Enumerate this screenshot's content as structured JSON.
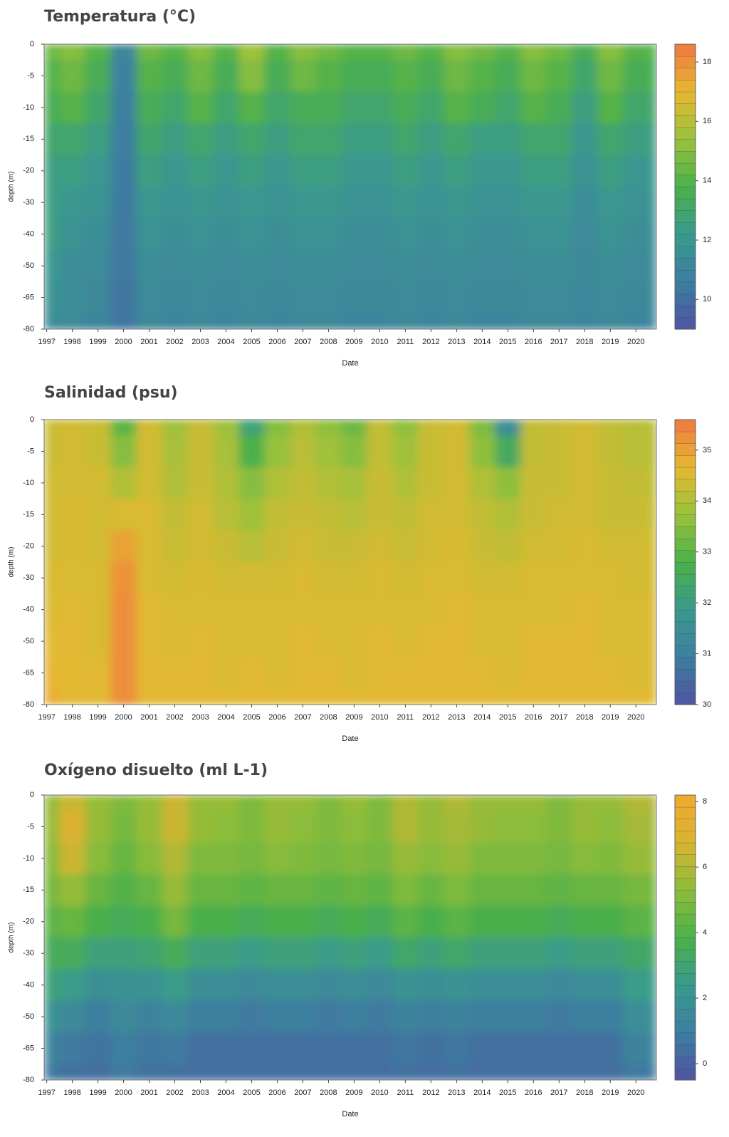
{
  "chart_data": [
    {
      "type": "contour",
      "title": "Temperatura (°C)",
      "xlabel": "Date",
      "ylabel": "depth (m)",
      "xlim": [
        1996.9,
        2020.8
      ],
      "xticks": [
        1997,
        1998,
        1999,
        2000,
        2001,
        2002,
        2003,
        2004,
        2005,
        2006,
        2007,
        2008,
        2009,
        2010,
        2011,
        2012,
        2013,
        2014,
        2015,
        2016,
        2017,
        2018,
        2019,
        2020
      ],
      "yticks": [
        0,
        -5,
        -10,
        -15,
        -20,
        -30,
        -40,
        -50,
        -65,
        -80
      ],
      "zlim": [
        9,
        18.6
      ],
      "zticks": [
        10,
        12,
        14,
        16,
        18
      ],
      "colors": [
        "#4f54a0",
        "#3d7ea0",
        "#3a9a8e",
        "#4bb04a",
        "#9ac23c",
        "#e7b830",
        "#f07840"
      ],
      "z": [
        [
          14.5,
          15,
          14,
          11,
          14.5,
          14,
          15,
          14,
          15.5,
          14,
          15,
          14.5,
          14,
          14,
          14.5,
          14,
          15,
          14.5,
          14,
          15,
          14.5,
          13.5,
          15,
          14
        ],
        [
          14,
          14.5,
          13.5,
          10.8,
          14,
          13.5,
          14.5,
          13.5,
          15,
          13.5,
          14.5,
          14,
          13.5,
          13.5,
          14,
          13.5,
          14.5,
          14,
          13.5,
          14.5,
          14,
          13,
          14.5,
          13.5
        ],
        [
          13.5,
          14,
          13,
          10.7,
          13.5,
          13,
          14,
          13,
          14,
          13,
          13.5,
          13.5,
          13,
          13,
          13.5,
          13,
          14,
          13.5,
          13,
          14,
          13.5,
          12.5,
          14,
          13
        ],
        [
          13,
          13,
          12.5,
          10.6,
          13,
          12.5,
          13,
          12.5,
          13,
          12.5,
          13,
          13,
          12.5,
          12.5,
          13,
          12.5,
          13,
          12.5,
          12.5,
          13,
          13,
          12,
          13,
          12.5
        ],
        [
          12.5,
          12.5,
          12,
          10.5,
          12.5,
          12,
          12.5,
          12,
          12.5,
          12,
          12.5,
          12.5,
          12,
          12,
          12.5,
          12,
          12.5,
          12,
          12,
          12.5,
          12.5,
          11.8,
          12.5,
          12
        ],
        [
          12.5,
          12,
          11.8,
          10.5,
          12,
          11.8,
          12,
          11.8,
          12,
          11.8,
          12,
          12,
          11.8,
          11.8,
          12,
          11.8,
          12,
          11.8,
          11.8,
          12,
          12,
          11.5,
          12,
          11.8
        ],
        [
          12.5,
          11.8,
          11.5,
          10.4,
          11.8,
          11.5,
          11.8,
          11.5,
          11.8,
          11.5,
          11.8,
          11.8,
          11.5,
          11.5,
          11.8,
          11.5,
          11.8,
          11.5,
          11.5,
          11.8,
          11.8,
          11.3,
          11.8,
          11.5
        ],
        [
          12,
          11.5,
          11.3,
          10.4,
          11.5,
          11.3,
          11.5,
          11.3,
          11.5,
          11.3,
          11.5,
          11.5,
          11.3,
          11.3,
          11.5,
          11.3,
          11.5,
          11.3,
          11.3,
          11.5,
          11.5,
          11.2,
          11.5,
          11.3
        ],
        [
          11.8,
          11.5,
          11.2,
          10.3,
          11.3,
          11.2,
          11.3,
          11.2,
          11.3,
          11.2,
          11.3,
          11.3,
          11.2,
          11.2,
          11.3,
          11.2,
          11.3,
          11.2,
          11.2,
          11.3,
          11.3,
          11.1,
          11.3,
          11.2
        ],
        [
          11.5,
          11.3,
          11,
          10.3,
          11.2,
          11,
          11.2,
          11,
          11.2,
          11,
          11.2,
          11.2,
          11,
          11,
          11.2,
          11,
          11.2,
          11,
          11,
          11.2,
          11.2,
          11,
          11.2,
          11
        ]
      ]
    },
    {
      "type": "contour",
      "title": "Salinidad (psu)",
      "xlabel": "Date",
      "ylabel": "depth (m)",
      "xlim": [
        1996.9,
        2020.8
      ],
      "xticks": [
        1997,
        1998,
        1999,
        2000,
        2001,
        2002,
        2003,
        2004,
        2005,
        2006,
        2007,
        2008,
        2009,
        2010,
        2011,
        2012,
        2013,
        2014,
        2015,
        2016,
        2017,
        2018,
        2019,
        2020
      ],
      "yticks": [
        0,
        -5,
        -10,
        -15,
        -20,
        -30,
        -40,
        -50,
        -65,
        -80
      ],
      "zlim": [
        30,
        35.6
      ],
      "zticks": [
        30,
        31,
        32,
        33,
        34,
        35
      ],
      "colors": [
        "#4f54a0",
        "#3d7ea0",
        "#3a9a8e",
        "#4bb04a",
        "#9ac23c",
        "#e7b830",
        "#f07840"
      ],
      "z": [
        [
          34.3,
          34.4,
          34.3,
          33,
          34.4,
          33.8,
          34.3,
          33.8,
          32.2,
          33.5,
          34,
          33.6,
          33.2,
          34.2,
          33.6,
          34.3,
          34.4,
          33.4,
          31.5,
          34.2,
          34.3,
          34.4,
          34.2,
          34.1
        ],
        [
          34.3,
          34.4,
          34.3,
          33.5,
          34.4,
          33.9,
          34.3,
          33.9,
          32.8,
          33.7,
          34.1,
          33.8,
          33.5,
          34.2,
          33.8,
          34.3,
          34.4,
          33.6,
          32.5,
          34.2,
          34.3,
          34.4,
          34.2,
          34.1
        ],
        [
          34.4,
          34.4,
          34.4,
          34,
          34.4,
          34,
          34.3,
          34,
          33.5,
          34,
          34.2,
          34,
          33.9,
          34.3,
          34,
          34.3,
          34.4,
          34,
          33.6,
          34.3,
          34.3,
          34.4,
          34.3,
          34.2
        ],
        [
          34.4,
          34.5,
          34.4,
          34.5,
          34.5,
          34.2,
          34.4,
          34.1,
          33.8,
          34.2,
          34.3,
          34.2,
          34.1,
          34.3,
          34.2,
          34.4,
          34.4,
          34.2,
          34,
          34.3,
          34.4,
          34.4,
          34.3,
          34.3
        ],
        [
          34.4,
          34.5,
          34.4,
          35,
          34.5,
          34.3,
          34.4,
          34.3,
          34.1,
          34.3,
          34.4,
          34.3,
          34.3,
          34.4,
          34.3,
          34.4,
          34.5,
          34.3,
          34.2,
          34.4,
          34.4,
          34.5,
          34.4,
          34.4
        ],
        [
          34.5,
          34.5,
          34.5,
          35.2,
          34.5,
          34.4,
          34.5,
          34.4,
          34.4,
          34.4,
          34.5,
          34.4,
          34.4,
          34.5,
          34.4,
          34.5,
          34.5,
          34.4,
          34.4,
          34.5,
          34.5,
          34.5,
          34.5,
          34.4
        ],
        [
          34.5,
          34.6,
          34.5,
          35.3,
          34.6,
          34.5,
          34.5,
          34.5,
          34.5,
          34.5,
          34.5,
          34.5,
          34.5,
          34.5,
          34.5,
          34.5,
          34.6,
          34.5,
          34.5,
          34.5,
          34.5,
          34.6,
          34.5,
          34.5
        ],
        [
          34.6,
          34.6,
          34.5,
          35.3,
          34.6,
          34.5,
          34.6,
          34.5,
          34.5,
          34.5,
          34.6,
          34.5,
          34.5,
          34.6,
          34.5,
          34.6,
          34.6,
          34.5,
          34.5,
          34.6,
          34.6,
          34.6,
          34.5,
          34.5
        ],
        [
          34.7,
          34.6,
          34.6,
          35.3,
          34.6,
          34.6,
          34.6,
          34.5,
          34.6,
          34.5,
          34.6,
          34.6,
          34.5,
          34.6,
          34.6,
          34.6,
          34.6,
          34.6,
          34.5,
          34.6,
          34.6,
          34.6,
          34.6,
          34.5
        ],
        [
          34.8,
          34.6,
          34.6,
          35.3,
          34.6,
          34.6,
          34.6,
          34.6,
          34.6,
          34.6,
          34.6,
          34.6,
          34.6,
          34.6,
          34.6,
          34.6,
          34.6,
          34.6,
          34.6,
          34.6,
          34.6,
          34.6,
          34.6,
          34.6
        ]
      ]
    },
    {
      "type": "contour",
      "title": "Oxígeno disuelto (ml L-1)",
      "xlabel": "Date",
      "ylabel": "depth (m)",
      "xlim": [
        1996.9,
        2020.8
      ],
      "xticks": [
        1997,
        1998,
        1999,
        2000,
        2001,
        2002,
        2003,
        2004,
        2005,
        2006,
        2007,
        2008,
        2009,
        2010,
        2011,
        2012,
        2013,
        2014,
        2015,
        2016,
        2017,
        2018,
        2019,
        2020
      ],
      "yticks": [
        0,
        -5,
        -10,
        -15,
        -20,
        -30,
        -40,
        -50,
        -65,
        -80
      ],
      "zlim": [
        -0.5,
        8.2
      ],
      "zticks": [
        0,
        2,
        4,
        6,
        8
      ],
      "colors": [
        "#4f54a0",
        "#3d7ea0",
        "#3a9a8e",
        "#4bb04a",
        "#8cbc3a",
        "#d8b430",
        "#f0a830"
      ],
      "z": [
        [
          5.5,
          6.5,
          5.5,
          5,
          5.5,
          6.5,
          5.5,
          5.5,
          5,
          5.5,
          5.5,
          5,
          5.5,
          5,
          6,
          5.5,
          6,
          5.5,
          5.5,
          5.5,
          5,
          5.5,
          5.5,
          6
        ],
        [
          5.5,
          7,
          5.5,
          4.8,
          5.5,
          6.5,
          5.5,
          5.3,
          5,
          5.5,
          5.3,
          5,
          5.3,
          5,
          6,
          5.5,
          5.8,
          5.5,
          5.3,
          5.3,
          5,
          5.5,
          5.3,
          5.8
        ],
        [
          5.2,
          6.5,
          5.2,
          4.5,
          5.2,
          6,
          5,
          5,
          4.8,
          5.2,
          5,
          4.8,
          5,
          4.8,
          5.5,
          5.2,
          5.5,
          5,
          5,
          5,
          4.8,
          5.2,
          5,
          5.5
        ],
        [
          4.8,
          5.5,
          4.5,
          4,
          4.5,
          5.5,
          4.5,
          4.5,
          4.3,
          4.5,
          4.5,
          4.3,
          4.5,
          4.3,
          5,
          4.5,
          5,
          4.5,
          4.5,
          4.5,
          4.3,
          4.5,
          4.5,
          4.8
        ],
        [
          4.2,
          4.5,
          3.8,
          3.5,
          3.8,
          4.8,
          3.8,
          3.8,
          3.5,
          3.8,
          3.8,
          3.5,
          3.8,
          3.5,
          4.2,
          3.8,
          4.2,
          3.8,
          3.8,
          3.8,
          3.5,
          3.8,
          3.8,
          4.2
        ],
        [
          3.5,
          3.5,
          2.8,
          2.8,
          3,
          3.5,
          2.8,
          2.8,
          2.5,
          2.8,
          2.8,
          2.5,
          2.8,
          2.5,
          3.2,
          2.8,
          3.2,
          2.8,
          2.8,
          2.8,
          2.5,
          2.8,
          2.8,
          3.2
        ],
        [
          2.8,
          2.5,
          1.8,
          2,
          2,
          2.5,
          1.8,
          1.8,
          1.5,
          1.8,
          1.8,
          1.5,
          1.8,
          1.5,
          2,
          1.8,
          2,
          1.8,
          1.8,
          1.8,
          1.5,
          1.8,
          1.8,
          2.5
        ],
        [
          2,
          1.5,
          1,
          1.5,
          1.2,
          1.5,
          1,
          1,
          0.8,
          1,
          1,
          0.8,
          1,
          0.8,
          1.2,
          1,
          1.2,
          1,
          1,
          1,
          0.8,
          1,
          1,
          1.8
        ],
        [
          1.2,
          0.8,
          0.6,
          1,
          0.7,
          0.8,
          0.5,
          0.5,
          0.5,
          0.5,
          0.5,
          0.5,
          0.5,
          0.5,
          0.7,
          0.5,
          0.7,
          0.5,
          0.5,
          0.5,
          0.5,
          0.5,
          0.5,
          1.2
        ],
        [
          0.8,
          0.5,
          0.4,
          0.8,
          0.5,
          0.5,
          0.4,
          0.4,
          0.4,
          0.4,
          0.4,
          0.4,
          0.4,
          0.4,
          0.5,
          0.4,
          0.5,
          0.4,
          0.4,
          0.4,
          0.4,
          0.4,
          0.4,
          0.8
        ]
      ]
    }
  ]
}
